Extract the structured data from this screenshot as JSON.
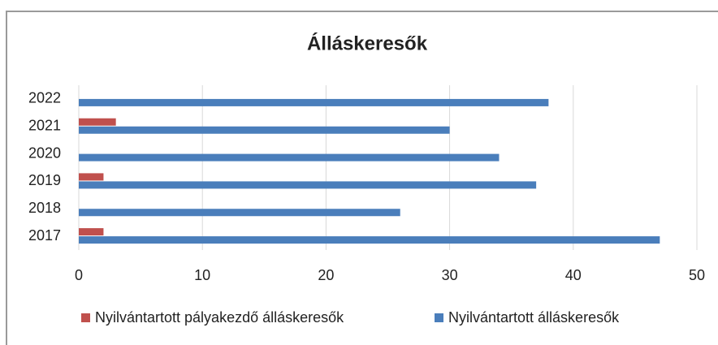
{
  "chart_data": {
    "type": "hbar",
    "title": "Álláskeresők",
    "categories": [
      "2017",
      "2018",
      "2019",
      "2020",
      "2021",
      "2022"
    ],
    "series": [
      {
        "name": "Nyilvántartott pályakezdő álláskeresők",
        "color": "#c0504d",
        "values": [
          2,
          0,
          2,
          0,
          3,
          0
        ]
      },
      {
        "name": "Nyilvántartott álláskeresők",
        "color": "#4a7ebb",
        "values": [
          47,
          26,
          37,
          34,
          30,
          38
        ]
      }
    ],
    "xlim": [
      0,
      50
    ],
    "xticks": [
      0,
      10,
      20,
      30,
      40,
      50
    ],
    "grid": true,
    "legend": "bottom"
  }
}
